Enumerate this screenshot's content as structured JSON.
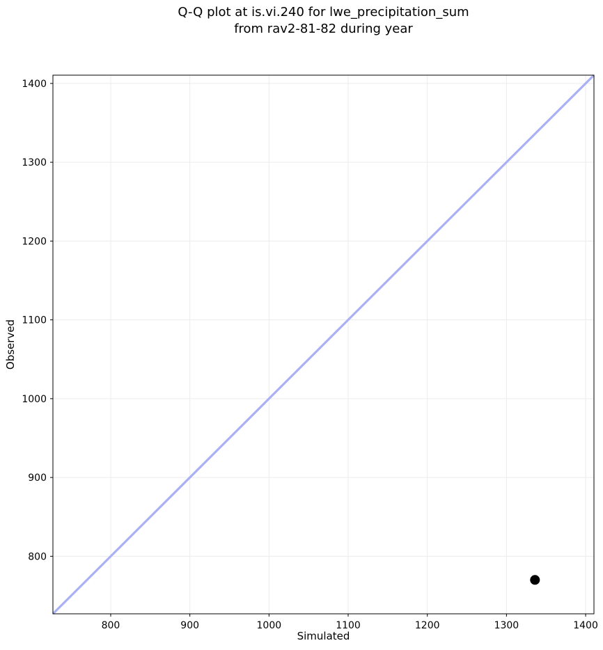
{
  "chart_data": {
    "type": "scatter",
    "title": "Q-Q plot at is.vi.240 for lwe_precipitation_sum\nfrom rav2-81-82 during year",
    "title_lines": [
      "Q-Q plot at is.vi.240 for lwe_precipitation_sum",
      "from rav2-81-82 during year"
    ],
    "xlabel": "Simulated",
    "ylabel": "Observed",
    "xlim": [
      727,
      1410.5
    ],
    "ylim": [
      727,
      1410.5
    ],
    "xticks": [
      800,
      900,
      1000,
      1100,
      1200,
      1300,
      1400
    ],
    "yticks": [
      800,
      900,
      1000,
      1100,
      1200,
      1300,
      1400
    ],
    "grid": true,
    "legend": "none",
    "series": [
      {
        "name": "quantile-points",
        "type": "scatter",
        "points": [
          {
            "x": 1336,
            "y": 770
          }
        ],
        "color": "#000000",
        "marker": "circle",
        "marker_radius": 7
      }
    ],
    "reference_line": {
      "type": "identity",
      "x1": 727,
      "y1": 727,
      "x2": 1410.5,
      "y2": 1410.5,
      "color": "#aab0f5",
      "width": 3.2
    },
    "colors": {
      "grid": "#ececec",
      "spine": "#000000",
      "tick": "#000000",
      "tick_label": "#000000",
      "background": "#ffffff"
    }
  }
}
